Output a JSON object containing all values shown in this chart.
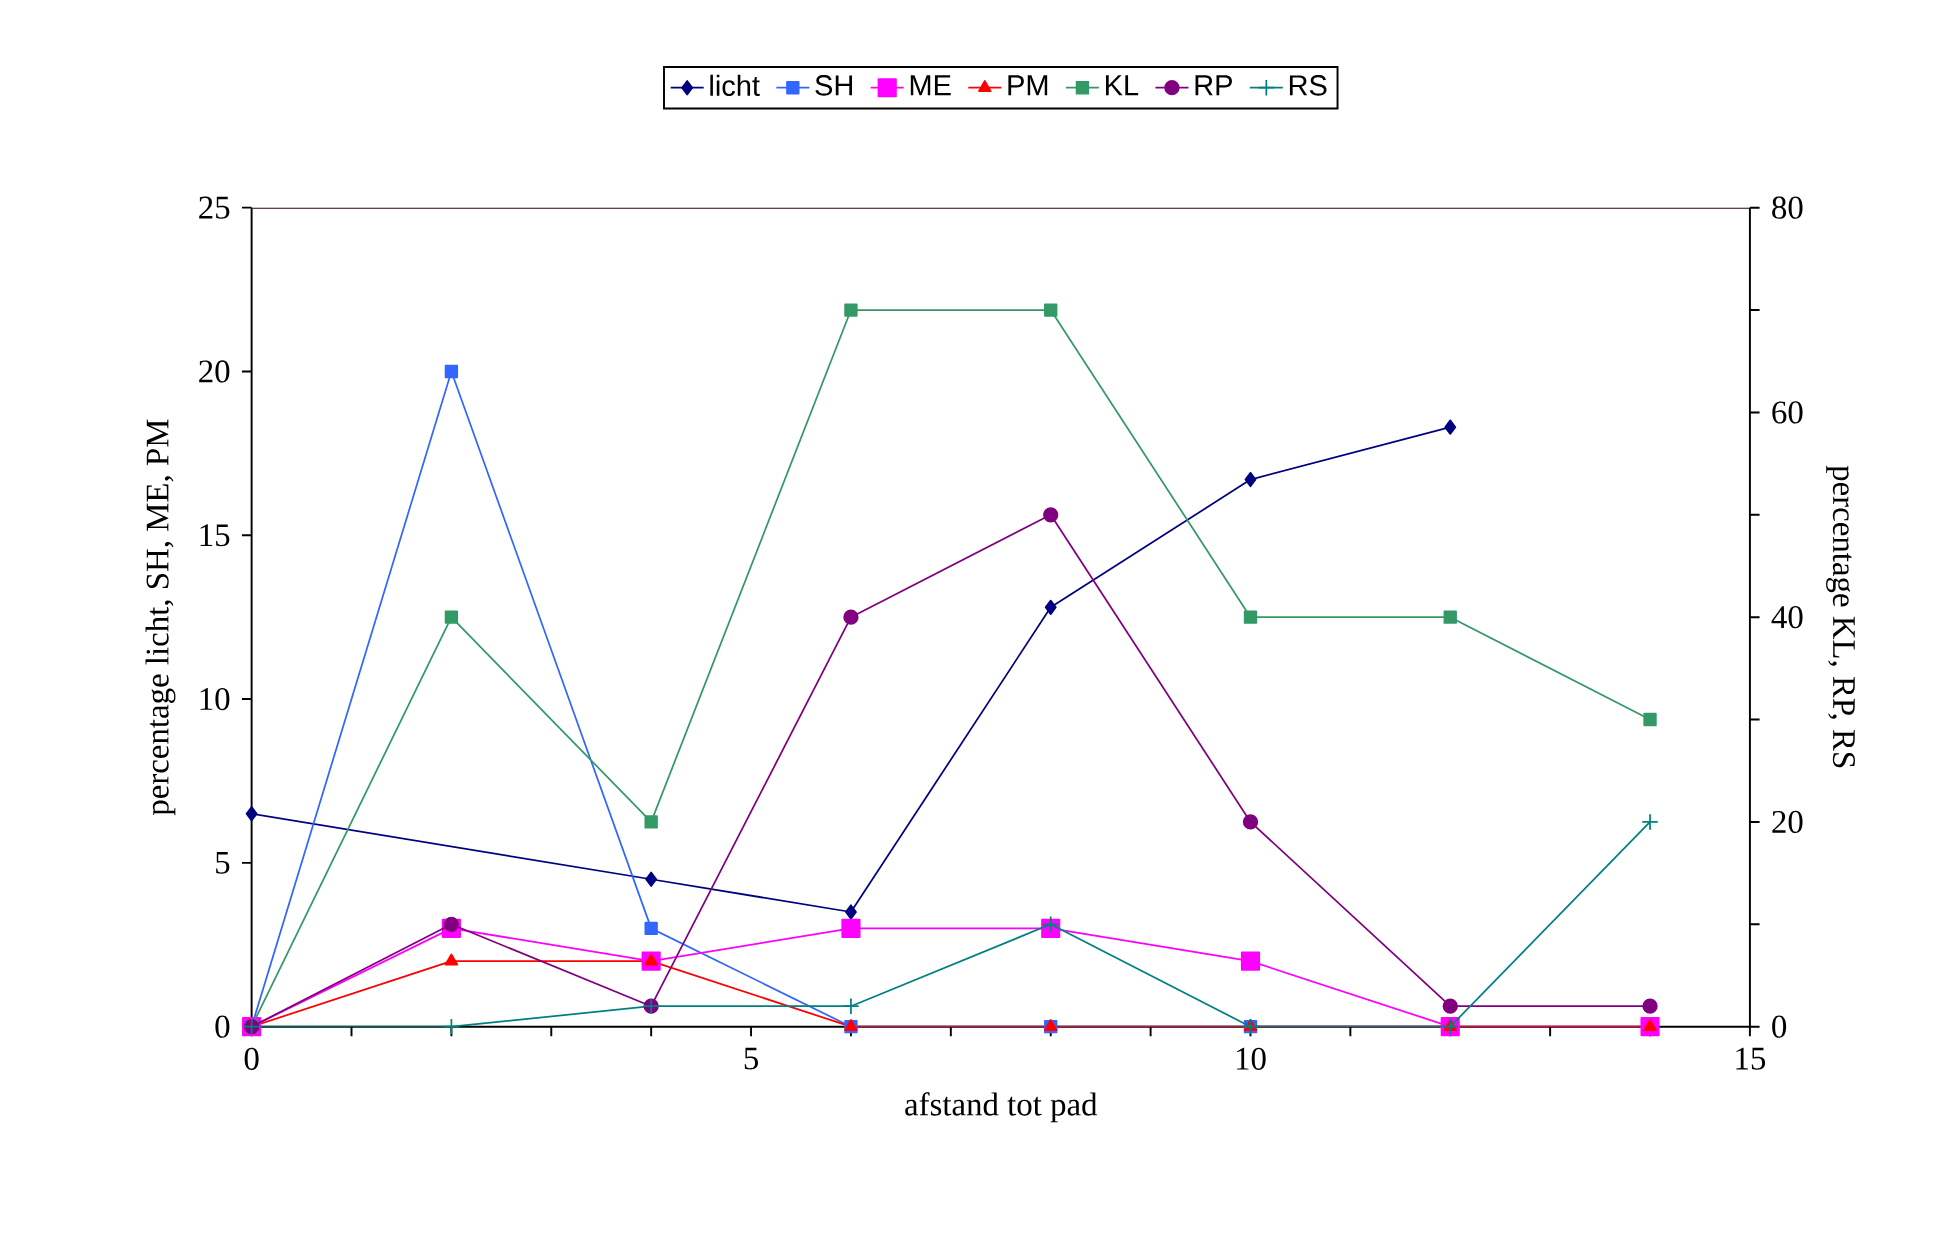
{
  "chart_data": {
    "type": "line",
    "xlabel": "afstand tot pad",
    "ylabel": "percentage licht, SH, ME, PM",
    "y2label": "percentage KL, RP, RS",
    "xlim": [
      0,
      15
    ],
    "xticks": [
      0,
      {
        "value": 1,
        "label": null
      },
      {
        "value": 2,
        "label": null
      },
      {
        "value": 3,
        "label": null
      },
      {
        "value": 4,
        "label": null
      },
      5,
      {
        "value": 6,
        "label": null
      },
      {
        "value": 7,
        "label": null
      },
      {
        "value": 8,
        "label": null
      },
      {
        "value": 9,
        "label": null
      },
      10,
      {
        "value": 11,
        "label": null
      },
      {
        "value": 12,
        "label": null
      },
      {
        "value": 13,
        "label": null
      },
      {
        "value": 14,
        "label": null
      },
      15
    ],
    "ylim": [
      0,
      25
    ],
    "yticks": [
      0,
      5,
      10,
      15,
      20,
      25
    ],
    "y2lim": [
      0,
      80
    ],
    "y2ticks": [
      0,
      {
        "value": 10,
        "label": null
      },
      20,
      {
        "value": 30,
        "label": null
      },
      40,
      {
        "value": 50,
        "label": null
      },
      60,
      {
        "value": 70,
        "label": null
      },
      80
    ],
    "legend": "top",
    "grid": false,
    "series": [
      {
        "name": "licht",
        "color": "#000080",
        "marker": "diamond",
        "x": [
          0,
          4,
          6,
          8,
          10,
          12
        ],
        "values": [
          6.5,
          4.5,
          3.5,
          12.8,
          16.7,
          18.3
        ]
      },
      {
        "name": "SH",
        "color": "#3366ff",
        "marker": "square",
        "x": [
          0,
          2,
          4,
          6,
          8,
          10,
          12
        ],
        "values": [
          0,
          20,
          3,
          0,
          0,
          0,
          0
        ]
      },
      {
        "name": "ME",
        "color": "#ff00ff",
        "marker": "square",
        "x": [
          0,
          2,
          4,
          6,
          8,
          10,
          12,
          14
        ],
        "values": [
          0,
          3,
          2,
          3,
          3,
          2,
          0,
          0
        ]
      },
      {
        "name": "PM",
        "color": "#ff0000",
        "marker": "triangle",
        "x": [
          0,
          2,
          4,
          6,
          8,
          10,
          12,
          14
        ],
        "values": [
          0,
          2,
          2,
          0,
          0,
          0,
          0,
          0
        ]
      },
      {
        "name": "KL",
        "color": "#339966",
        "marker": "square",
        "axis": "y2",
        "x": [
          0,
          2,
          4,
          6,
          8,
          10,
          12,
          14
        ],
        "values": [
          0,
          40,
          20,
          70,
          70,
          40,
          40,
          30
        ]
      },
      {
        "name": "RP",
        "color": "#800080",
        "marker": "circle",
        "axis": "y2",
        "x": [
          0,
          2,
          4,
          6,
          8,
          10,
          12,
          14
        ],
        "values": [
          0,
          10,
          2,
          40,
          50,
          20,
          2,
          2
        ]
      },
      {
        "name": "RS",
        "color": "#008080",
        "marker": "cross",
        "axis": "y2",
        "x": [
          0,
          2,
          4,
          6,
          8,
          10,
          12,
          14
        ],
        "values": [
          0,
          0,
          2,
          2,
          10,
          0,
          0,
          20
        ]
      }
    ]
  }
}
